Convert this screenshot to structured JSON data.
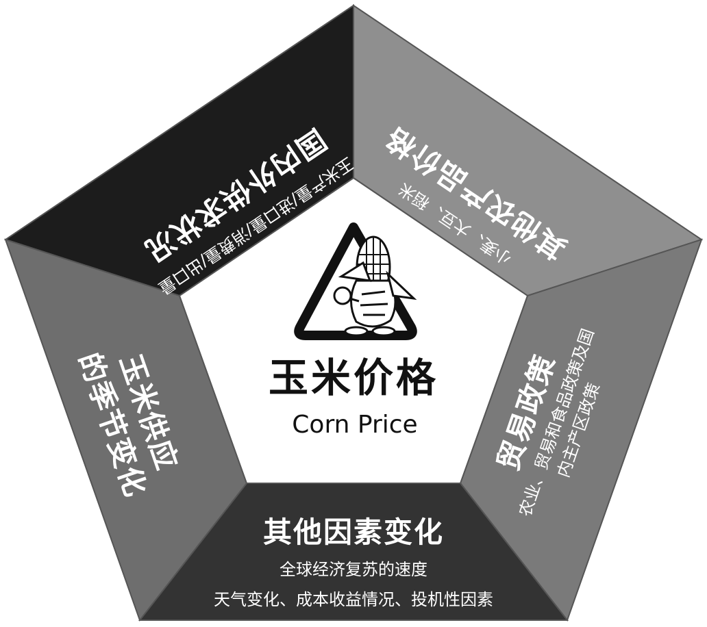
{
  "colors": {
    "top_left": "#1c1c1c",
    "top_right": "#8f8f8f",
    "right": "#7a7a7a",
    "bottom": "#333333",
    "left": "#6e6e6e",
    "center": "#ffffff"
  },
  "center": {
    "icon": "corn-mascot-triangle-logo",
    "title_cn": "玉米价格",
    "title_en": "Corn Price"
  },
  "segments": {
    "top_left": {
      "title": "国内外供求状况",
      "sub": "玉米产量/进口量/消费量/出口量"
    },
    "top_right": {
      "title": "其他农产品价格",
      "sub": "小麦、大豆、稻米"
    },
    "right": {
      "title": "贸易政策",
      "sub1": "农业、贸易和食品政策及国",
      "sub2": "内主产区政策"
    },
    "bottom": {
      "title": "其他因素变化",
      "sub1": "全球经济复苏的速度",
      "sub2": "天气变化、成本收益情况、投机性因素"
    },
    "left": {
      "title1": "玉米供应",
      "title2": "的季节变化"
    }
  }
}
